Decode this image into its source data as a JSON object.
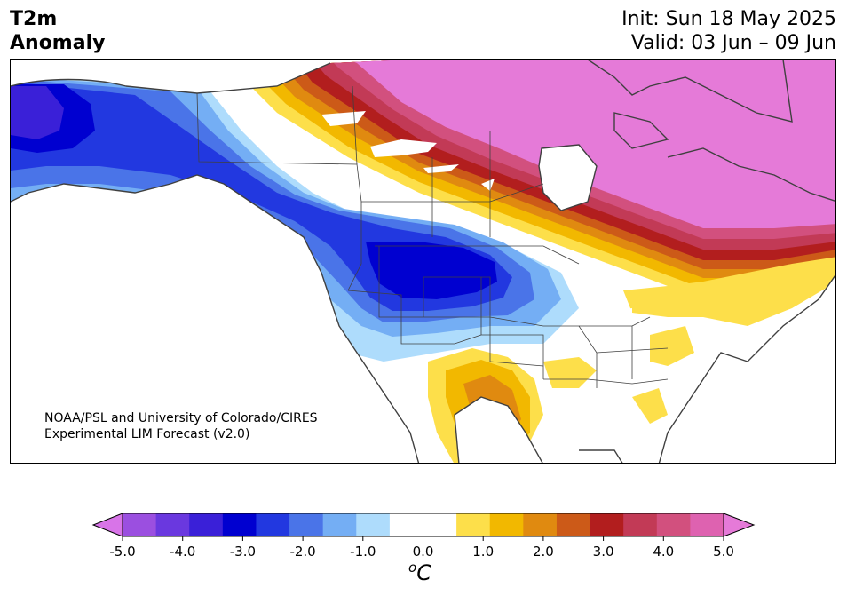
{
  "header": {
    "title_line1": "T2m",
    "title_line2": "Anomaly",
    "init_text": "Init: Sun 18 May 2025",
    "valid_text": "Valid: 03 Jun – 09 Jun"
  },
  "map": {
    "credit_line1": "NOAA/PSL and University of Colorado/CIRES",
    "credit_line2": "Experimental LIM Forecast (v2.0)",
    "region": "North America",
    "ocean_color": "#ffffff",
    "boundary_color": "#404040"
  },
  "colorbar": {
    "unit": "C",
    "unit_prefix": "o",
    "tick_labels": [
      "-5.0",
      "-4.0",
      "-3.0",
      "-2.0",
      "-1.0",
      "0.0",
      "1.0",
      "2.0",
      "3.0",
      "4.0",
      "5.0"
    ],
    "under_color": "#d874e8",
    "over_color": "#e57ad8",
    "level_colors": [
      "#9b4fe0",
      "#6a38df",
      "#3a20d8",
      "#0000d0",
      "#2238e0",
      "#4a74e8",
      "#74aef4",
      "#aedcfc",
      "#ffffff",
      "#ffffff",
      "#fddf4a",
      "#f2b800",
      "#e08a10",
      "#cc5a18",
      "#b21e1e",
      "#c23a56",
      "#d2507e",
      "#de62b0"
    ]
  }
}
